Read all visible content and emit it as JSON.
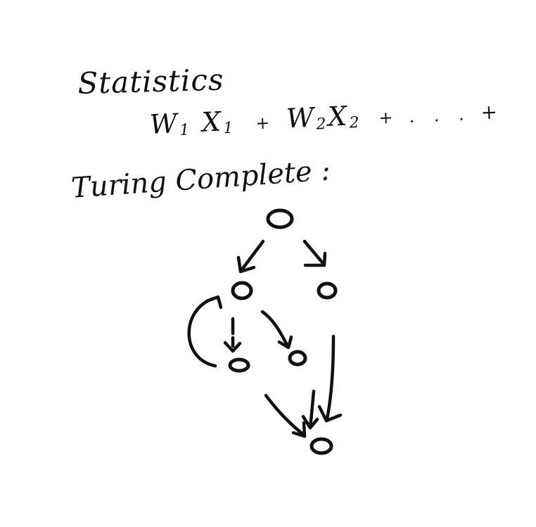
{
  "heading_statistics": "Statistics",
  "formula": {
    "w1": "W",
    "sub1": "1",
    "x1": "X",
    "sub1b": "1",
    "plus1": "+",
    "w2": "W",
    "sub2": "2",
    "x2": "X",
    "sub2b": "2",
    "plus2": "+",
    "ellipsis": ". . .",
    "plus3": "+"
  },
  "heading_turing": "Turing Complete :",
  "ink_color": "#111111",
  "graph": {
    "nodes": [
      "root",
      "left",
      "right",
      "left-child-a",
      "left-child-b",
      "sink"
    ],
    "edges": [
      [
        "root",
        "left"
      ],
      [
        "root",
        "right"
      ],
      [
        "left",
        "left"
      ],
      [
        "left",
        "left-child-a"
      ],
      [
        "left",
        "left-child-b"
      ],
      [
        "left-child-a",
        "sink"
      ],
      [
        "left-child-b",
        "sink"
      ],
      [
        "right",
        "sink"
      ]
    ]
  }
}
